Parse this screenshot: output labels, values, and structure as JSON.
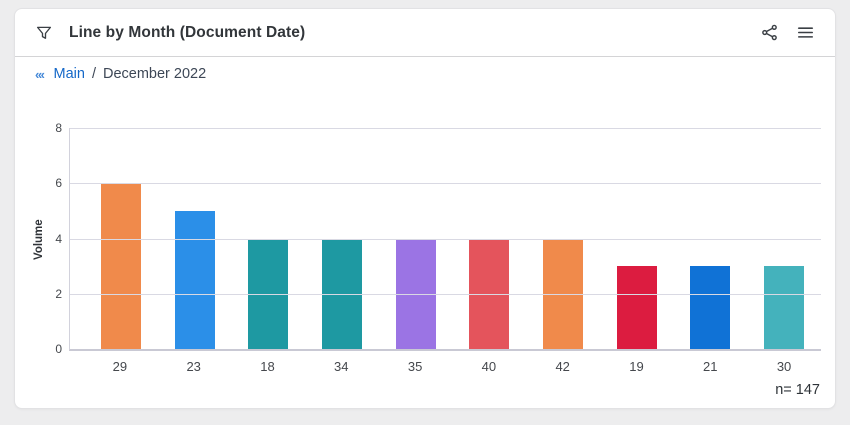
{
  "header": {
    "title": "Line by Month (Document Date)",
    "icons": {
      "filter": "funnel-filter",
      "share": "share-network",
      "menu": "hamburger-menu"
    }
  },
  "breadcrumb": {
    "collapse": "‹‹‹",
    "link": "Main",
    "separator": "/",
    "current": "December 2022"
  },
  "chart_data": {
    "type": "bar",
    "title": "Line by Month (Document Date)",
    "categories": [
      "29",
      "23",
      "18",
      "34",
      "35",
      "40",
      "42",
      "19",
      "21",
      "30"
    ],
    "values": [
      6,
      5,
      4,
      4,
      4,
      4,
      4,
      3,
      3,
      3
    ],
    "bar_colors": [
      "#F08A4B",
      "#2B8FE8",
      "#1E99A2",
      "#1E99A2",
      "#9B74E4",
      "#E4545C",
      "#F08A4B",
      "#DC1C40",
      "#1072D6",
      "#44B2BC"
    ],
    "xlabel": "",
    "ylabel": "Volume",
    "ylim": [
      0,
      8
    ],
    "yticks": [
      0,
      2,
      4,
      6,
      8
    ],
    "grid": true,
    "legend": false,
    "n_label": "n= 147"
  },
  "colors": {
    "link_blue": "#1568C8",
    "chevron_blue": "#4488D8",
    "title_text": "#32363A",
    "axis_text": "#45484D",
    "gridline": "#D9D9E3",
    "axis_line": "#C9C9D4",
    "card_bg": "#FFFFFF",
    "page_bg": "#EDEDEE"
  }
}
